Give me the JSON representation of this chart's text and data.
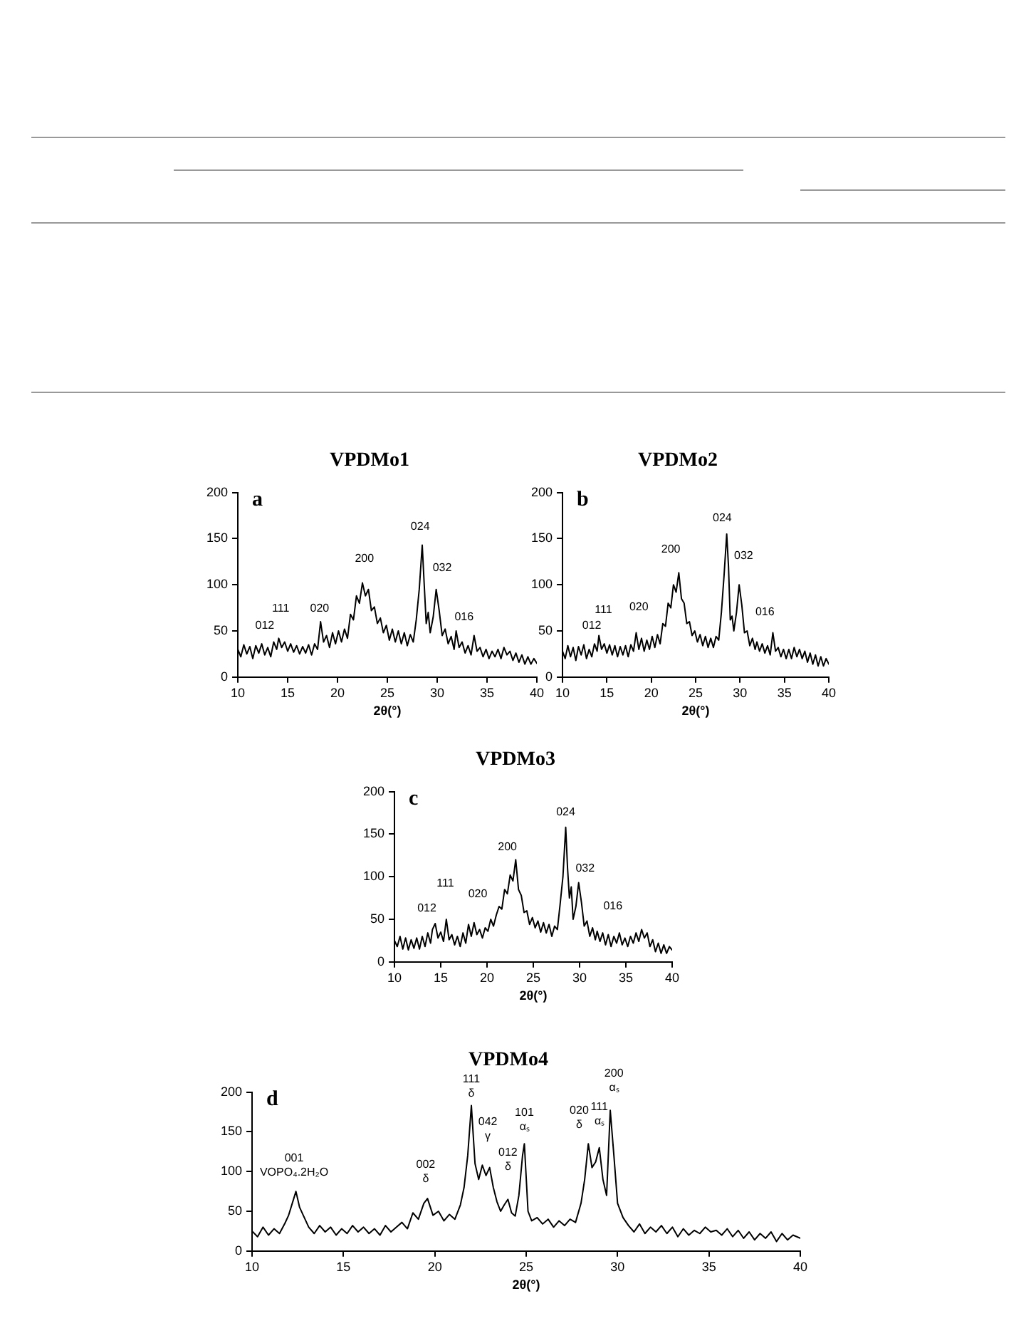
{
  "chart_data": [
    {
      "type": "line",
      "title": "VPDMo1",
      "xlabel": "2θ(°)",
      "xlim": [
        10,
        40
      ],
      "xticks": [
        10,
        15,
        20,
        25,
        30,
        35,
        40
      ],
      "ylim": [
        0,
        200
      ],
      "yticks": [
        0,
        50,
        100,
        150,
        200
      ],
      "grid": false,
      "legend": false,
      "annotations": [
        "a",
        {
          "text": "012",
          "x": 12.4,
          "y": 36
        },
        {
          "text": "111",
          "x": 14.1,
          "y": 42
        },
        {
          "text": "020",
          "x": 18.3,
          "y": 60
        },
        {
          "text": "200",
          "x": 22.5,
          "y": 102
        },
        {
          "text": "024",
          "x": 28.5,
          "y": 143
        },
        {
          "text": "032",
          "x": 29.9,
          "y": 95
        },
        {
          "text": "016",
          "x": 31.9,
          "y": 50
        }
      ],
      "series": [
        {
          "color": "#000000",
          "x": [
            10,
            10.3,
            10.6,
            10.9,
            11.2,
            11.5,
            11.8,
            12.1,
            12.4,
            12.7,
            13,
            13.3,
            13.6,
            13.9,
            14.1,
            14.4,
            14.7,
            15,
            15.3,
            15.6,
            15.9,
            16.2,
            16.5,
            16.8,
            17.1,
            17.4,
            17.7,
            18,
            18.3,
            18.6,
            18.9,
            19.2,
            19.5,
            19.8,
            20.1,
            20.4,
            20.7,
            21,
            21.3,
            21.6,
            21.9,
            22.2,
            22.5,
            22.8,
            23.1,
            23.4,
            23.7,
            24,
            24.3,
            24.6,
            24.9,
            25.2,
            25.5,
            25.8,
            26.1,
            26.4,
            26.7,
            27,
            27.3,
            27.6,
            27.9,
            28.2,
            28.5,
            28.7,
            28.9,
            29.1,
            29.3,
            29.6,
            29.9,
            30.2,
            30.5,
            30.8,
            31.1,
            31.4,
            31.7,
            31.9,
            32.2,
            32.5,
            32.8,
            33.1,
            33.4,
            33.7,
            34,
            34.3,
            34.6,
            34.9,
            35.2,
            35.5,
            35.8,
            36.1,
            36.4,
            36.7,
            37,
            37.3,
            37.6,
            37.9,
            38.2,
            38.5,
            38.8,
            39.1,
            39.4,
            39.7,
            40
          ],
          "values": [
            30,
            22,
            35,
            25,
            33,
            20,
            34,
            26,
            36,
            24,
            32,
            22,
            38,
            30,
            42,
            32,
            38,
            28,
            36,
            27,
            34,
            25,
            33,
            26,
            35,
            24,
            36,
            30,
            60,
            38,
            45,
            32,
            48,
            36,
            50,
            38,
            52,
            42,
            68,
            62,
            88,
            80,
            102,
            88,
            95,
            72,
            76,
            58,
            64,
            48,
            56,
            40,
            52,
            38,
            50,
            36,
            48,
            34,
            46,
            38,
            62,
            95,
            143,
            100,
            58,
            70,
            48,
            65,
            95,
            72,
            45,
            52,
            36,
            44,
            30,
            50,
            32,
            38,
            26,
            34,
            24,
            45,
            28,
            32,
            22,
            30,
            20,
            28,
            22,
            30,
            20,
            32,
            24,
            28,
            18,
            26,
            16,
            24,
            14,
            22,
            14,
            20,
            15
          ]
        }
      ]
    },
    {
      "type": "line",
      "title": "VPDMo2",
      "xlabel": "2θ(°)",
      "xlim": [
        10,
        40
      ],
      "xticks": [
        10,
        15,
        20,
        25,
        30,
        35,
        40
      ],
      "ylim": [
        0,
        200
      ],
      "yticks": [
        0,
        50,
        100,
        150,
        200
      ],
      "grid": false,
      "legend": false,
      "annotations": [
        "b",
        {
          "text": "012",
          "x": 13.6,
          "y": 36
        },
        {
          "text": "111",
          "x": 14.1,
          "y": 45
        },
        {
          "text": "020",
          "x": 18.3,
          "y": 48
        },
        {
          "text": "200",
          "x": 23.1,
          "y": 113
        },
        {
          "text": "024",
          "x": 28.5,
          "y": 155
        },
        {
          "text": "032",
          "x": 29.9,
          "y": 100
        },
        {
          "text": "016",
          "x": 33.7,
          "y": 48
        }
      ],
      "series": [
        {
          "color": "#000000",
          "x": [
            10,
            10.3,
            10.6,
            10.9,
            11.2,
            11.5,
            11.8,
            12.1,
            12.4,
            12.7,
            13,
            13.3,
            13.6,
            13.9,
            14.1,
            14.4,
            14.7,
            15,
            15.3,
            15.6,
            15.9,
            16.2,
            16.5,
            16.8,
            17.1,
            17.4,
            17.7,
            18,
            18.3,
            18.6,
            18.9,
            19.2,
            19.5,
            19.8,
            20.1,
            20.4,
            20.7,
            21,
            21.3,
            21.6,
            21.9,
            22.2,
            22.5,
            22.8,
            23.1,
            23.4,
            23.7,
            24,
            24.3,
            24.6,
            24.9,
            25.2,
            25.5,
            25.8,
            26.1,
            26.4,
            26.7,
            27,
            27.3,
            27.6,
            27.9,
            28.2,
            28.5,
            28.7,
            28.9,
            29.1,
            29.3,
            29.6,
            29.9,
            30.2,
            30.5,
            30.8,
            31.1,
            31.4,
            31.7,
            31.9,
            32.2,
            32.5,
            32.8,
            33.1,
            33.4,
            33.7,
            34,
            34.3,
            34.6,
            34.9,
            35.2,
            35.5,
            35.8,
            36.1,
            36.4,
            36.7,
            37,
            37.3,
            37.6,
            37.9,
            38.2,
            38.5,
            38.8,
            39.1,
            39.4,
            39.7,
            40
          ],
          "values": [
            28,
            20,
            34,
            22,
            32,
            18,
            33,
            24,
            35,
            20,
            30,
            22,
            36,
            28,
            45,
            30,
            36,
            26,
            35,
            24,
            34,
            22,
            33,
            24,
            34,
            22,
            35,
            28,
            48,
            30,
            42,
            28,
            40,
            30,
            44,
            32,
            46,
            36,
            58,
            55,
            80,
            75,
            100,
            92,
            113,
            85,
            80,
            58,
            60,
            45,
            50,
            38,
            46,
            34,
            44,
            32,
            42,
            32,
            44,
            40,
            70,
            110,
            155,
            120,
            62,
            66,
            50,
            70,
            100,
            78,
            48,
            50,
            34,
            42,
            30,
            38,
            28,
            36,
            26,
            34,
            24,
            48,
            28,
            32,
            22,
            30,
            20,
            30,
            20,
            32,
            22,
            30,
            20,
            28,
            16,
            26,
            14,
            24,
            12,
            22,
            12,
            20,
            14
          ]
        }
      ]
    },
    {
      "type": "line",
      "title": "VPDMo3",
      "xlabel": "2θ(°)",
      "xlim": [
        10,
        40
      ],
      "xticks": [
        10,
        15,
        20,
        25,
        30,
        35,
        40
      ],
      "ylim": [
        0,
        200
      ],
      "yticks": [
        0,
        50,
        100,
        150,
        200
      ],
      "grid": false,
      "legend": false,
      "annotations": [
        "c",
        {
          "text": "012",
          "x": 14.4,
          "y": 45
        },
        {
          "text": "111",
          "x": 15.6,
          "y": 50
        },
        {
          "text": "020",
          "x": 18.6,
          "y": 46
        },
        {
          "text": "200",
          "x": 23.1,
          "y": 120
        },
        {
          "text": "024",
          "x": 28.5,
          "y": 158
        },
        {
          "text": "032",
          "x": 29.9,
          "y": 93
        },
        {
          "text": "016",
          "x": 33.7,
          "y": 30
        }
      ],
      "series": [
        {
          "color": "#000000",
          "x": [
            10,
            10.3,
            10.6,
            10.9,
            11.2,
            11.5,
            11.8,
            12.1,
            12.4,
            12.7,
            13,
            13.3,
            13.6,
            13.9,
            14.1,
            14.4,
            14.7,
            15,
            15.3,
            15.6,
            15.9,
            16.2,
            16.5,
            16.8,
            17.1,
            17.4,
            17.7,
            18,
            18.3,
            18.6,
            18.9,
            19.2,
            19.5,
            19.8,
            20.1,
            20.4,
            20.7,
            21,
            21.3,
            21.6,
            21.9,
            22.2,
            22.5,
            22.8,
            23.1,
            23.4,
            23.7,
            24,
            24.3,
            24.6,
            24.9,
            25.2,
            25.5,
            25.8,
            26.1,
            26.4,
            26.7,
            27,
            27.3,
            27.6,
            27.9,
            28.2,
            28.5,
            28.7,
            28.9,
            29.1,
            29.3,
            29.6,
            29.9,
            30.2,
            30.5,
            30.8,
            31.1,
            31.4,
            31.7,
            31.9,
            32.2,
            32.5,
            32.8,
            33.1,
            33.4,
            33.7,
            34,
            34.3,
            34.6,
            34.9,
            35.2,
            35.5,
            35.8,
            36.1,
            36.4,
            36.7,
            37,
            37.3,
            37.6,
            37.9,
            38.2,
            38.5,
            38.8,
            39.1,
            39.4,
            39.7,
            40
          ],
          "values": [
            25,
            18,
            30,
            15,
            28,
            14,
            26,
            16,
            28,
            15,
            30,
            18,
            34,
            22,
            38,
            45,
            28,
            35,
            24,
            50,
            26,
            32,
            20,
            30,
            18,
            34,
            22,
            44,
            30,
            46,
            32,
            38,
            28,
            40,
            36,
            50,
            42,
            55,
            65,
            62,
            85,
            80,
            102,
            95,
            120,
            85,
            78,
            58,
            60,
            44,
            52,
            40,
            48,
            35,
            46,
            34,
            44,
            30,
            42,
            38,
            68,
            100,
            158,
            110,
            75,
            88,
            50,
            65,
            93,
            70,
            42,
            48,
            30,
            40,
            26,
            36,
            24,
            34,
            20,
            32,
            18,
            30,
            22,
            34,
            20,
            28,
            18,
            30,
            22,
            34,
            24,
            38,
            28,
            34,
            18,
            26,
            12,
            22,
            10,
            20,
            10,
            18,
            14
          ]
        }
      ]
    },
    {
      "type": "line",
      "title": "VPDMo4",
      "xlabel": "2θ(°)",
      "xlim": [
        10,
        40
      ],
      "xticks": [
        10,
        15,
        20,
        25,
        30,
        35,
        40
      ],
      "ylim": [
        0,
        200
      ],
      "yticks": [
        0,
        50,
        100,
        150,
        200
      ],
      "grid": false,
      "legend": false,
      "annotations": [
        "d",
        {
          "text": "001\nVOPO₄.2H₂O",
          "x": 12.4,
          "y": 75
        },
        {
          "text": "002\nδ",
          "x": 19.6,
          "y": 66
        },
        {
          "text": "111\nδ",
          "x": 22,
          "y": 183
        },
        {
          "text": "042\nγ",
          "x": 22.6,
          "y": 108
        },
        {
          "text": "012\nδ",
          "x": 24,
          "y": 65
        },
        {
          "text": "101\nαₛ",
          "x": 24.9,
          "y": 135
        },
        {
          "text": "020\nδ",
          "x": 28.4,
          "y": 135
        },
        {
          "text": "111\nαₛ",
          "x": 29,
          "y": 130
        },
        {
          "text": "200\nαₛ",
          "x": 29.6,
          "y": 177
        }
      ],
      "series": [
        {
          "color": "#000000",
          "x": [
            10,
            10.3,
            10.6,
            10.9,
            11.2,
            11.5,
            11.8,
            12,
            12.2,
            12.4,
            12.6,
            12.8,
            13.1,
            13.4,
            13.7,
            14,
            14.3,
            14.6,
            14.9,
            15.2,
            15.5,
            15.8,
            16.1,
            16.4,
            16.7,
            17,
            17.3,
            17.6,
            17.9,
            18.2,
            18.5,
            18.8,
            19.1,
            19.4,
            19.6,
            19.9,
            20.2,
            20.5,
            20.8,
            21.1,
            21.4,
            21.6,
            21.8,
            22,
            22.2,
            22.4,
            22.6,
            22.8,
            23,
            23.2,
            23.4,
            23.6,
            23.8,
            24,
            24.2,
            24.4,
            24.6,
            24.8,
            24.9,
            25.1,
            25.3,
            25.6,
            25.9,
            26.2,
            26.5,
            26.8,
            27.1,
            27.4,
            27.7,
            28,
            28.2,
            28.4,
            28.6,
            28.8,
            29,
            29.2,
            29.4,
            29.6,
            29.8,
            30,
            30.3,
            30.6,
            30.9,
            31.2,
            31.5,
            31.8,
            32.1,
            32.4,
            32.7,
            33,
            33.3,
            33.6,
            33.9,
            34.2,
            34.5,
            34.8,
            35.1,
            35.4,
            35.7,
            36,
            36.3,
            36.6,
            36.9,
            37.2,
            37.5,
            37.8,
            38.1,
            38.4,
            38.7,
            39,
            39.3,
            39.6,
            40
          ],
          "values": [
            25,
            18,
            30,
            20,
            28,
            22,
            35,
            45,
            60,
            75,
            55,
            45,
            30,
            22,
            32,
            24,
            30,
            20,
            28,
            22,
            32,
            24,
            30,
            22,
            28,
            20,
            32,
            24,
            30,
            36,
            28,
            48,
            40,
            60,
            66,
            45,
            50,
            38,
            46,
            40,
            58,
            80,
            120,
            183,
            110,
            90,
            108,
            95,
            105,
            80,
            62,
            50,
            58,
            65,
            48,
            44,
            70,
            120,
            135,
            50,
            38,
            42,
            34,
            40,
            30,
            38,
            32,
            40,
            36,
            60,
            90,
            135,
            105,
            112,
            130,
            90,
            70,
            177,
            120,
            60,
            42,
            32,
            24,
            34,
            22,
            30,
            24,
            32,
            22,
            30,
            18,
            28,
            20,
            26,
            22,
            30,
            24,
            26,
            20,
            28,
            18,
            26,
            16,
            24,
            14,
            22,
            16,
            24,
            12,
            22,
            14,
            20,
            16
          ]
        }
      ]
    }
  ]
}
